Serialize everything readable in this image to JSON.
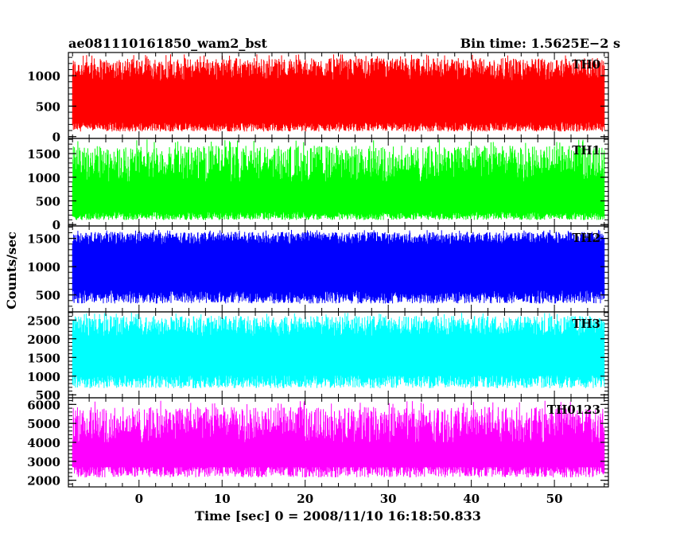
{
  "header": {
    "left_title": "ae081110161850_wam2_bst",
    "right_title": "Bin time: 1.5625E−2 s"
  },
  "chart_data": {
    "type": "line",
    "xlabel": "Time [sec] 0 = 2008/11/10 16:18:50.833",
    "ylabel": "Counts/sec",
    "xlim": [
      -8.5,
      56.5
    ],
    "data_x_range": [
      -8,
      56
    ],
    "bin_time_s": 0.015625,
    "x_major_ticks": [
      0,
      10,
      20,
      30,
      40,
      50
    ],
    "x_minor_step": 2,
    "panels": [
      {
        "name": "TH0",
        "color": "#ff0000",
        "ylim": [
          -30,
          1380
        ],
        "yticks": [
          0,
          500,
          1000
        ],
        "ytick_labels": [
          "0",
          "500",
          "1000"
        ],
        "y_minor_step": 100,
        "band": [
          130,
          1000
        ],
        "mean": 560,
        "range_observed": [
          0,
          1350
        ]
      },
      {
        "name": "TH1",
        "color": "#00ff00",
        "ylim": [
          -30,
          1820
        ],
        "yticks": [
          0,
          500,
          1000,
          1500
        ],
        "ytick_labels": [
          "0",
          "500",
          "1000",
          "1500"
        ],
        "y_minor_step": 100,
        "band": [
          150,
          1050
        ],
        "mean": 560,
        "range_observed": [
          0,
          1800
        ]
      },
      {
        "name": "TH2",
        "color": "#0000ff",
        "ylim": [
          200,
          1720
        ],
        "yticks": [
          500,
          1000,
          1500
        ],
        "ytick_labels": [
          "500",
          "1000",
          "1500"
        ],
        "y_minor_step": 100,
        "band": [
          420,
          1450
        ],
        "mean": 900,
        "range_observed": [
          220,
          1650
        ]
      },
      {
        "name": "TH3",
        "color": "#00ffff",
        "ylim": [
          420,
          2720
        ],
        "yticks": [
          500,
          1000,
          1500,
          2000,
          2500
        ],
        "ytick_labels": [
          "500",
          "1000",
          "1500",
          "2000",
          "2500"
        ],
        "y_minor_step": 100,
        "band": [
          800,
          2200
        ],
        "mean": 1450,
        "range_observed": [
          450,
          2700
        ]
      },
      {
        "name": "TH0123",
        "color": "#ff00ff",
        "ylim": [
          1650,
          6350
        ],
        "yticks": [
          2000,
          3000,
          4000,
          5000,
          6000
        ],
        "ytick_labels": [
          "2000",
          "3000",
          "4000",
          "5000",
          "6000"
        ],
        "y_minor_step": 200,
        "band": [
          2400,
          4300
        ],
        "mean": 3350,
        "range_observed": [
          1700,
          6200
        ]
      }
    ]
  }
}
